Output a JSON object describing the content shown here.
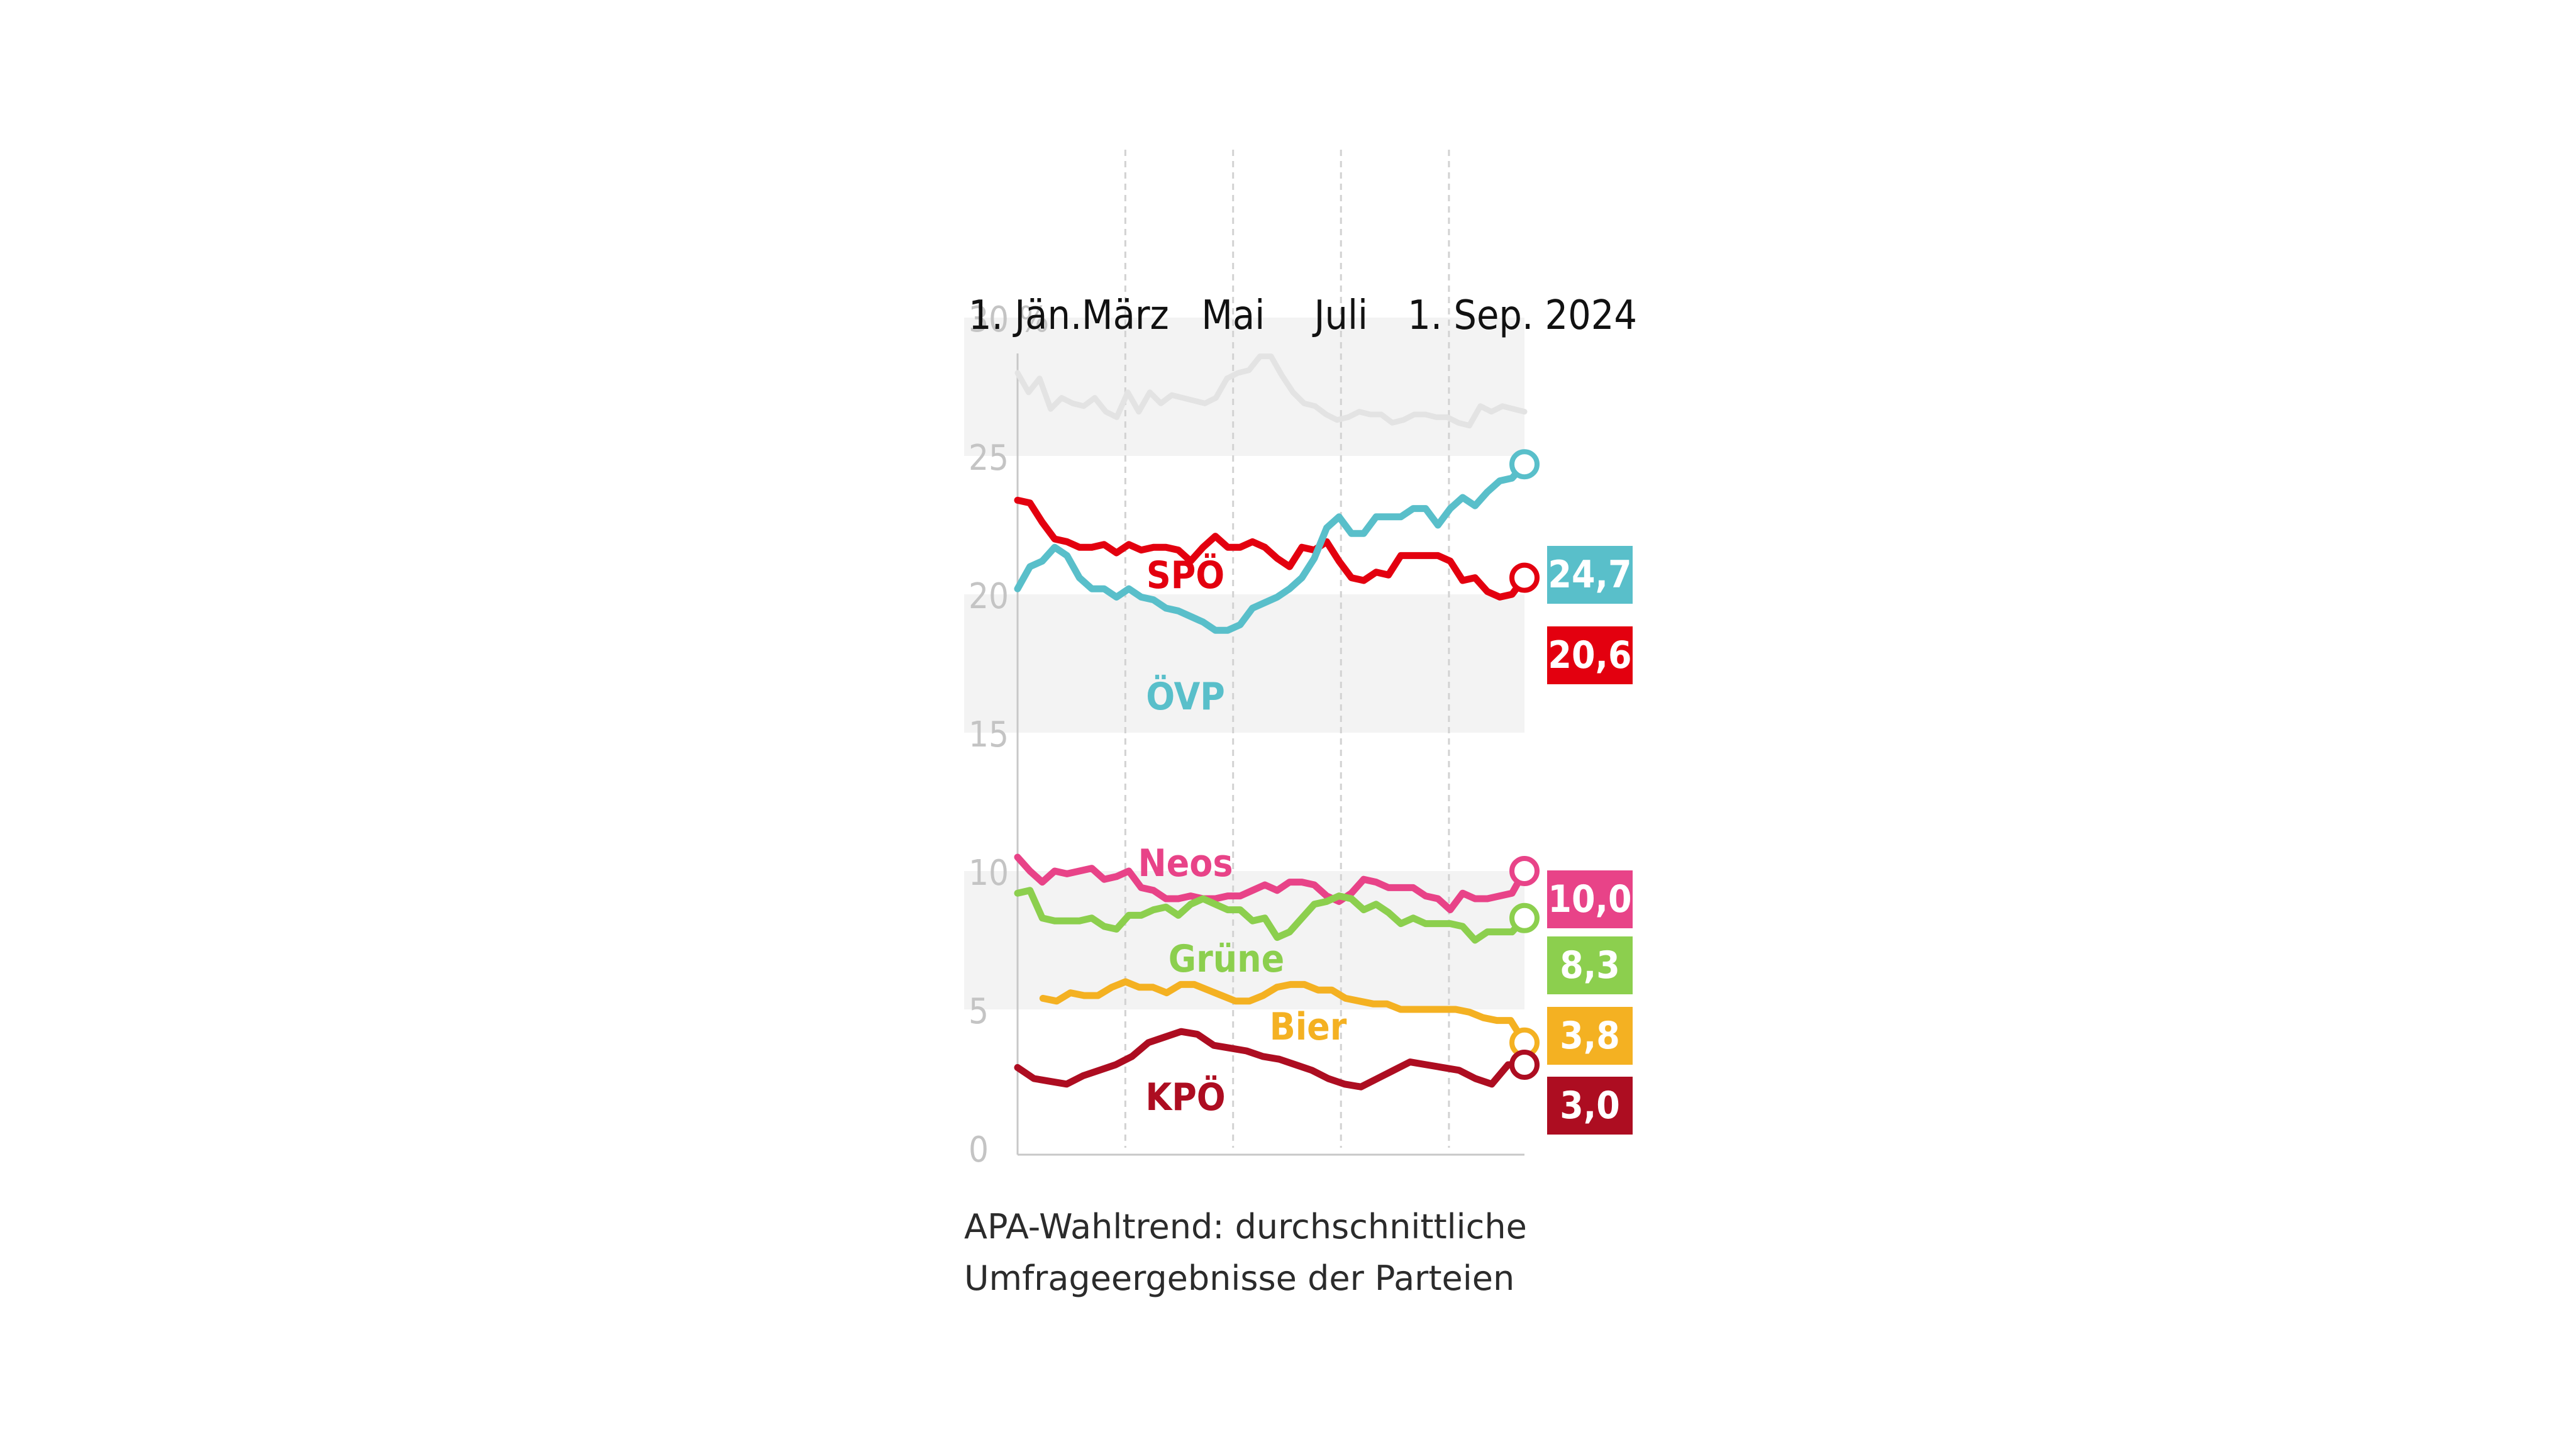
{
  "caption": {
    "line1": "APA-Wahltrend: durchschnittliche",
    "line2": "Umfrageergebnisse der Parteien"
  },
  "chart_data": {
    "type": "line",
    "title": "",
    "xlabel": "",
    "ylabel": "",
    "x_tick_labels": [
      "1. Jän.",
      "März",
      "Mai",
      "Juli",
      "1. Sep. 2024"
    ],
    "y_tick_labels": [
      "0",
      "5",
      "10",
      "15",
      "20",
      "25",
      "30 %"
    ],
    "ylim": [
      0,
      30
    ],
    "grid": "vertical dashed lines at month ticks, alternating grey bands",
    "series": [
      {
        "name": "",
        "color": "#e3e3e3",
        "start": 0.0,
        "values": [
          28.0,
          27.3,
          27.8,
          26.7,
          27.1,
          26.9,
          26.8,
          27.1,
          26.6,
          26.4,
          27.3,
          26.6,
          27.3,
          26.9,
          27.2,
          27.1,
          27.0,
          26.9,
          27.1,
          27.8,
          28.0,
          28.1,
          28.6,
          28.6,
          27.9,
          27.3,
          26.9,
          26.8,
          26.5,
          26.3,
          26.4,
          26.6,
          26.5,
          26.5,
          26.2,
          26.3,
          26.5,
          26.5,
          26.4,
          26.4,
          26.2,
          26.1,
          26.8,
          26.6,
          26.8,
          26.7,
          26.6
        ]
      },
      {
        "name": "SPÖ",
        "color": "#e3000f",
        "start": 0.0,
        "values": [
          23.4,
          23.3,
          22.6,
          22.0,
          21.9,
          21.7,
          21.7,
          21.8,
          21.5,
          21.8,
          21.6,
          21.7,
          21.7,
          21.6,
          21.2,
          21.7,
          22.1,
          21.7,
          21.7,
          21.9,
          21.7,
          21.3,
          21.0,
          21.7,
          21.6,
          21.9,
          21.2,
          20.6,
          20.5,
          20.8,
          20.7,
          21.4,
          21.4,
          21.4,
          21.4,
          21.2,
          20.5,
          20.6,
          20.1,
          19.9,
          20.0,
          20.6
        ]
      },
      {
        "name": "ÖVP",
        "color": "#59bfca",
        "start": 0.0,
        "values": [
          20.2,
          21.0,
          21.2,
          21.7,
          21.4,
          20.6,
          20.2,
          20.2,
          19.9,
          20.2,
          19.9,
          19.8,
          19.5,
          19.4,
          19.2,
          19.0,
          18.7,
          18.7,
          18.9,
          19.5,
          19.7,
          19.9,
          20.2,
          20.6,
          21.3,
          22.4,
          22.8,
          22.2,
          22.2,
          22.8,
          22.8,
          22.8,
          23.1,
          23.1,
          22.5,
          23.1,
          23.5,
          23.2,
          23.7,
          24.1,
          24.2,
          24.7
        ]
      },
      {
        "name": "Neos",
        "color": "#e84388",
        "start": 0.0,
        "values": [
          10.5,
          10.0,
          9.6,
          10.0,
          9.9,
          10.0,
          10.1,
          9.7,
          9.8,
          10.0,
          9.4,
          9.3,
          9.0,
          9.0,
          9.1,
          9.0,
          9.0,
          9.1,
          9.1,
          9.3,
          9.5,
          9.3,
          9.6,
          9.6,
          9.5,
          9.1,
          8.9,
          9.2,
          9.7,
          9.6,
          9.4,
          9.4,
          9.4,
          9.1,
          9.0,
          8.6,
          9.2,
          9.0,
          9.0,
          9.1,
          9.2,
          10.0
        ]
      },
      {
        "name": "Grüne",
        "color": "#8ccf4e",
        "start": 0.0,
        "values": [
          9.2,
          9.3,
          8.3,
          8.2,
          8.2,
          8.2,
          8.3,
          8.0,
          7.9,
          8.4,
          8.4,
          8.6,
          8.7,
          8.4,
          8.8,
          9.0,
          8.8,
          8.6,
          8.6,
          8.2,
          8.3,
          7.6,
          7.8,
          8.3,
          8.8,
          8.9,
          9.1,
          9.0,
          8.6,
          8.8,
          8.5,
          8.1,
          8.3,
          8.1,
          8.1,
          8.1,
          8.0,
          7.5,
          7.8,
          7.8,
          7.8,
          8.3
        ]
      },
      {
        "name": "Bier",
        "color": "#f4b122",
        "start": 0.05,
        "values": [
          5.4,
          5.3,
          5.6,
          5.5,
          5.5,
          5.8,
          6.0,
          5.8,
          5.8,
          5.6,
          5.9,
          5.9,
          5.7,
          5.5,
          5.3,
          5.3,
          5.5,
          5.8,
          5.9,
          5.9,
          5.7,
          5.7,
          5.4,
          5.3,
          5.2,
          5.2,
          5.0,
          5.0,
          5.0,
          5.0,
          5.0,
          4.9,
          4.7,
          4.6,
          4.6,
          3.8
        ]
      },
      {
        "name": "KPÖ",
        "color": "#ad0d21",
        "start": 0.0,
        "values": [
          2.9,
          2.5,
          2.4,
          2.3,
          2.6,
          2.8,
          3.0,
          3.3,
          3.8,
          4.0,
          4.2,
          4.1,
          3.7,
          3.6,
          3.5,
          3.3,
          3.2,
          3.0,
          2.8,
          2.5,
          2.3,
          2.2,
          2.5,
          2.8,
          3.1,
          3.0,
          2.9,
          2.8,
          2.5,
          2.3,
          3.0,
          3.0
        ]
      }
    ],
    "end_labels": [
      {
        "series": "ÖVP",
        "value": "24,7",
        "color": "#59bfca"
      },
      {
        "series": "SPÖ",
        "value": "20,6",
        "color": "#e3000f"
      },
      {
        "series": "Neos",
        "value": "10,0",
        "color": "#e84388"
      },
      {
        "series": "Grüne",
        "value": "8,3",
        "color": "#8ccf4e"
      },
      {
        "series": "Bier",
        "value": "3,8",
        "color": "#f4b122"
      },
      {
        "series": "KPÖ",
        "value": "3,0",
        "color": "#ad0d21"
      }
    ]
  }
}
